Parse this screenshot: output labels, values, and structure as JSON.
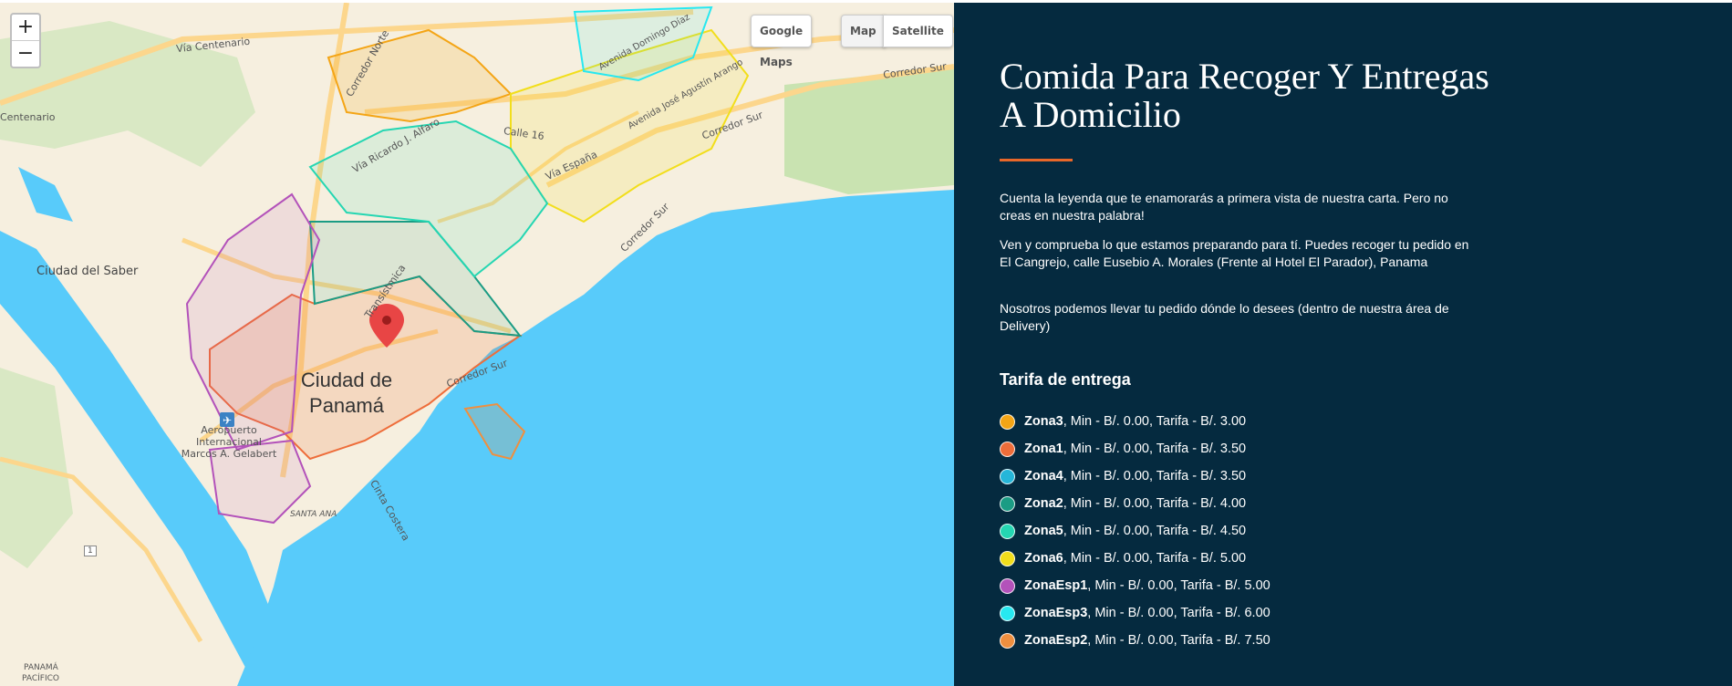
{
  "map": {
    "zoom_in": "+",
    "zoom_out": "−",
    "google_maps_label": "Google Maps",
    "map_label": "Map",
    "satellite_label": "Satellite",
    "place_labels": {
      "via_centenario": "Vía Centenario",
      "centenario": "Centenario",
      "ciudad_del_saber": "Ciudad del Saber",
      "corredor_norte": "Corredor Norte",
      "via_ricardo_j_alfaro": "Vía Ricardo J. Alfaro",
      "calle_16": "Calle 16",
      "via_espana": "Vía España",
      "avenida_domingo_diaz": "Avenida Domingo Díaz",
      "avenida_jose_agustin_arango": "Avenida José Agustín Arango",
      "corredor_sur_1": "Corredor Sur",
      "corredor_sur_2": "Corredor Sur",
      "corredor_sur_3": "Corredor Sur",
      "corredor_sur_4": "Corredor Sur",
      "transistmica": "Transístmica",
      "city_line1": "Ciudad de",
      "city_line2": "Panamá",
      "airport": "Aeropuerto Internacional Marcos A. Gelabert",
      "santa_ana": "SANTA ANA",
      "cinta_costera": "Cinta Costera",
      "panama_pacifico_1": "PANAMÁ",
      "panama_pacifico_2": "PACÍFICO",
      "route_1": "1"
    },
    "colors": {
      "water": "#58cbfa",
      "land": "#f6efdf",
      "zona3": "#f4a516",
      "zona1": "#ee6d3a",
      "zona4": "#25b6d9",
      "zona2": "#1b9c84",
      "zona5": "#25d6b2",
      "zona6": "#f2de1b",
      "zonaesp1": "#b352ba",
      "zonaesp3": "#27e8f0",
      "zonaesp2": "#ef8f3f"
    }
  },
  "panel": {
    "title": "Comida Para Recoger Y Entregas A Domicilio",
    "paragraph1": "Cuenta la leyenda que te enamorarás a primera vista de nuestra carta. Pero no creas en nuestra palabra!",
    "paragraph2": "Ven y comprueba lo que estamos preparando para tí. Puedes recoger tu pedido en El Cangrejo, calle Eusebio A. Morales (Frente al Hotel El Parador), Panama",
    "paragraph3": "Nosotros podemos llevar tu pedido dónde lo desees (dentro de nuestra área de Delivery)",
    "tarifa_title": "Tarifa de entrega",
    "zones": [
      {
        "name": "Zona3",
        "details": ", Min - B/. 0.00, Tarifa - B/. 3.00",
        "color": "#f4a516"
      },
      {
        "name": "Zona1",
        "details": ", Min - B/. 0.00, Tarifa - B/. 3.50",
        "color": "#ee6d3a"
      },
      {
        "name": "Zona4",
        "details": ", Min - B/. 0.00, Tarifa - B/. 3.50",
        "color": "#25b6d9"
      },
      {
        "name": "Zona2",
        "details": ", Min - B/. 0.00, Tarifa - B/. 4.00",
        "color": "#1b9c84"
      },
      {
        "name": "Zona5",
        "details": ", Min - B/. 0.00, Tarifa - B/. 4.50",
        "color": "#25d6b2"
      },
      {
        "name": "Zona6",
        "details": ", Min - B/. 0.00, Tarifa - B/. 5.00",
        "color": "#f2de1b"
      },
      {
        "name": "ZonaEsp1",
        "details": ", Min - B/. 0.00, Tarifa - B/. 5.00",
        "color": "#b352ba"
      },
      {
        "name": "ZonaEsp3",
        "details": ", Min - B/. 0.00, Tarifa - B/. 6.00",
        "color": "#27e8f0"
      },
      {
        "name": "ZonaEsp2",
        "details": ", Min - B/. 0.00, Tarifa - B/. 7.50",
        "color": "#ef8f3f"
      }
    ]
  }
}
